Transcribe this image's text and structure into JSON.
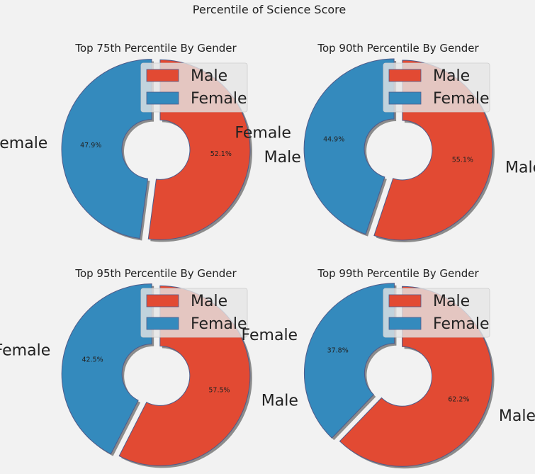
{
  "figure": {
    "title": "Percentile of Science Score"
  },
  "colors": {
    "male": "#e24a33",
    "female": "#348abd",
    "background": "#f2f2f2",
    "edge": "#4f5b8a",
    "shadow": "#7a7a7a"
  },
  "chart_data": [
    {
      "type": "pie",
      "style": "donut, exploded, shadowed",
      "title": "Top 75th Percentile By Gender",
      "categories": [
        "Male",
        "Female"
      ],
      "values": [
        52.1,
        47.9
      ],
      "value_labels": [
        "52.1%",
        "47.9%"
      ],
      "legend": {
        "entries": [
          "Male",
          "Female"
        ],
        "placement": "upper-right"
      }
    },
    {
      "type": "pie",
      "style": "donut, exploded, shadowed",
      "title": "Top 90th Percentile By Gender",
      "categories": [
        "Male",
        "Female"
      ],
      "values": [
        55.1,
        44.9
      ],
      "value_labels": [
        "55.1%",
        "44.9%"
      ],
      "legend": {
        "entries": [
          "Male",
          "Female"
        ],
        "placement": "upper-right"
      }
    },
    {
      "type": "pie",
      "style": "donut, exploded, shadowed",
      "title": "Top 95th Percentile By Gender",
      "categories": [
        "Male",
        "Female"
      ],
      "values": [
        57.5,
        42.5
      ],
      "value_labels": [
        "57.5%",
        "42.5%"
      ],
      "legend": {
        "entries": [
          "Male",
          "Female"
        ],
        "placement": "upper-right"
      }
    },
    {
      "type": "pie",
      "style": "donut, exploded, shadowed",
      "title": "Top 99th Percentile By Gender",
      "categories": [
        "Male",
        "Female"
      ],
      "values": [
        62.2,
        37.8
      ],
      "value_labels": [
        "62.2%",
        "37.8%"
      ],
      "legend": {
        "entries": [
          "Male",
          "Female"
        ],
        "placement": "upper-right"
      }
    }
  ]
}
